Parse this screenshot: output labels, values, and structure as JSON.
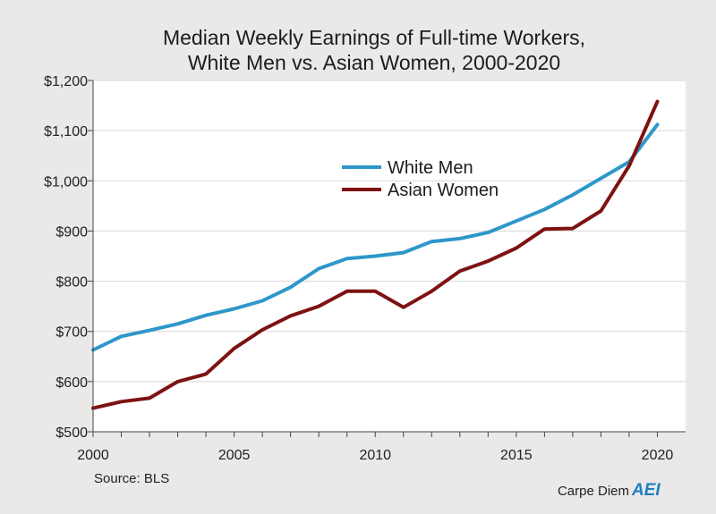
{
  "chart_data": {
    "type": "line",
    "title_lines": [
      "Median Weekly Earnings of Full-time Workers,",
      "White Men vs. Asian Women, 2000-2020"
    ],
    "x": [
      2000,
      2001,
      2002,
      2003,
      2004,
      2005,
      2006,
      2007,
      2008,
      2009,
      2010,
      2011,
      2012,
      2013,
      2014,
      2015,
      2016,
      2017,
      2018,
      2019,
      2020
    ],
    "series": [
      {
        "name": "White Men",
        "color": "#2e97c9",
        "values": [
          663,
          690,
          702,
          715,
          732,
          745,
          761,
          788,
          825,
          845,
          850,
          857,
          879,
          885,
          897,
          920,
          943,
          972,
          1005,
          1038,
          1112
        ]
      },
      {
        "name": "Asian Women",
        "color": "#7d1212",
        "values": [
          547,
          560,
          567,
          600,
          615,
          666,
          703,
          731,
          750,
          780,
          780,
          748,
          780,
          820,
          840,
          866,
          904,
          905,
          940,
          1030,
          1158
        ]
      }
    ],
    "xlim": [
      2000,
      2021
    ],
    "ylim": [
      500,
      1200
    ],
    "xticks": [
      2000,
      2005,
      2010,
      2015,
      2020
    ],
    "xtick_labels": [
      "2000",
      "2005",
      "2010",
      "2015",
      "2020"
    ],
    "yticks": [
      500,
      600,
      700,
      800,
      900,
      1000,
      1100,
      1200
    ],
    "ytick_labels": [
      "$500",
      "$600",
      "$700",
      "$800",
      "$900",
      "$1,000",
      "$1,100",
      "$1,200"
    ],
    "grid": "horizontal",
    "legend_position": "center-upper"
  },
  "footer": {
    "source": "Source: BLS",
    "brand_text": "Carpe Diem",
    "brand_logo": "AEI"
  },
  "colors": {
    "background": "#eae9e7",
    "plot_background": "#ffffff",
    "grid": "#d7d7d7"
  }
}
